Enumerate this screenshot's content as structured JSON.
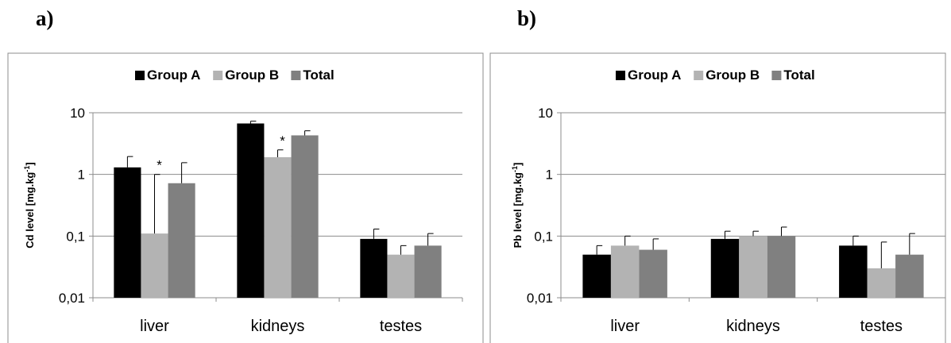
{
  "panels": [
    {
      "label": "a)"
    },
    {
      "label": "b)"
    }
  ],
  "chart_data": [
    {
      "type": "bar",
      "ylabel": "Cd level [mg.kg",
      "ylabel_sup": "-1",
      "ylabel_end": "]",
      "yscale": "log",
      "ylim": [
        0.01,
        10
      ],
      "yticks": [
        0.01,
        0.1,
        1,
        10
      ],
      "yticklabels": [
        "0,01",
        "0,1",
        "1",
        "10"
      ],
      "categories": [
        "liver",
        "kidneys",
        "testes"
      ],
      "grid": true,
      "legend_position": "top",
      "series": [
        {
          "name": "Group A",
          "color": "#000000",
          "values": [
            1.3,
            6.7,
            0.09
          ],
          "error_high": [
            1.95,
            7.3,
            0.13
          ]
        },
        {
          "name": "Group B",
          "color": "#b3b3b3",
          "values": [
            0.11,
            1.9,
            0.05
          ],
          "error_high": [
            1.0,
            2.5,
            0.07
          ]
        },
        {
          "name": "Total",
          "color": "#808080",
          "values": [
            0.72,
            4.3,
            0.07
          ],
          "error_high": [
            1.55,
            5.1,
            0.11
          ]
        }
      ],
      "annotations": [
        {
          "text": "*",
          "category": "liver",
          "series": "Group B"
        },
        {
          "text": "*",
          "category": "kidneys",
          "series": "Group B"
        }
      ]
    },
    {
      "type": "bar",
      "ylabel": "Pb level [mg.kg",
      "ylabel_sup": "-1",
      "ylabel_end": "]",
      "yscale": "log",
      "ylim": [
        0.01,
        10
      ],
      "yticks": [
        0.01,
        0.1,
        1,
        10
      ],
      "yticklabels": [
        "0,01",
        "0,1",
        "1",
        "10"
      ],
      "categories": [
        "liver",
        "kidneys",
        "testes"
      ],
      "grid": true,
      "legend_position": "top",
      "series": [
        {
          "name": "Group A",
          "color": "#000000",
          "values": [
            0.05,
            0.09,
            0.07
          ],
          "error_high": [
            0.07,
            0.12,
            0.1
          ]
        },
        {
          "name": "Group B",
          "color": "#b3b3b3",
          "values": [
            0.07,
            0.1,
            0.03
          ],
          "error_high": [
            0.1,
            0.12,
            0.08
          ]
        },
        {
          "name": "Total",
          "color": "#808080",
          "values": [
            0.06,
            0.1,
            0.05
          ],
          "error_high": [
            0.09,
            0.14,
            0.11
          ]
        }
      ],
      "annotations": []
    }
  ]
}
